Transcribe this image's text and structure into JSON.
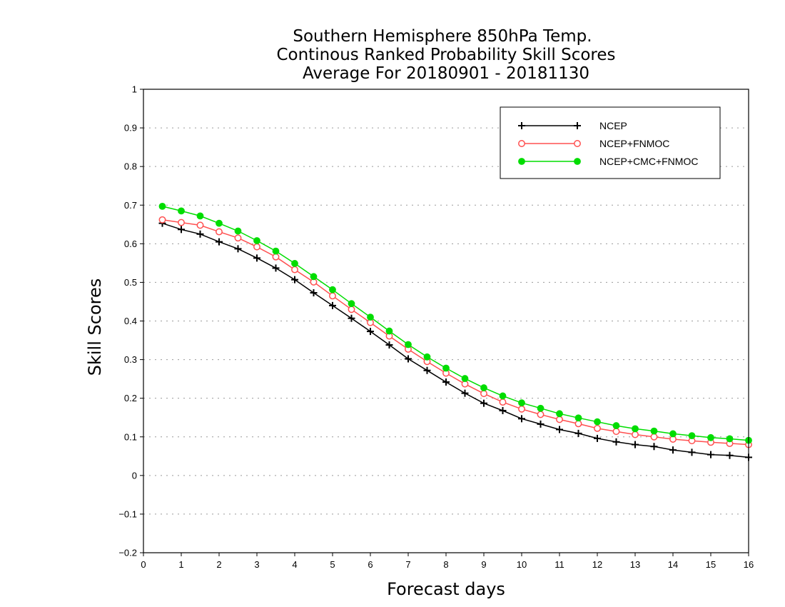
{
  "chart_data": {
    "type": "line",
    "title": "Southern Hemisphere 850hPa Temp.",
    "subtitle": "Continous Ranked Probability Skill Scores",
    "subtitle2": "Average For 20180901 - 20181130",
    "xlabel": "Forecast days",
    "ylabel": "Skill Scores",
    "xlim": [
      0,
      16
    ],
    "ylim": [
      -0.2,
      1
    ],
    "xticks": [
      "0",
      "1",
      "2",
      "3",
      "4",
      "5",
      "6",
      "7",
      "8",
      "9",
      "10",
      "11",
      "12",
      "13",
      "14",
      "15",
      "16"
    ],
    "yticks": [
      "-0.2",
      "-0.1",
      "0",
      "0.1",
      "0.2",
      "0.3",
      "0.4",
      "0.5",
      "0.6",
      "0.7",
      "0.8",
      "0.9",
      "1"
    ],
    "grid": true,
    "legend_position": "top-right",
    "x": [
      0.5,
      1,
      1.5,
      2,
      2.5,
      3,
      3.5,
      4,
      4.5,
      5,
      5.5,
      6,
      6.5,
      7,
      7.5,
      8,
      8.5,
      9,
      9.5,
      10,
      10.5,
      11,
      11.5,
      12,
      12.5,
      13,
      13.5,
      14,
      14.5,
      15,
      15.5,
      16
    ],
    "series": [
      {
        "name": "NCEP",
        "color": "#000000",
        "marker": "plus",
        "values": [
          0.653,
          0.637,
          0.625,
          0.605,
          0.587,
          0.563,
          0.537,
          0.507,
          0.473,
          0.44,
          0.407,
          0.373,
          0.338,
          0.302,
          0.272,
          0.242,
          0.213,
          0.187,
          0.168,
          0.147,
          0.133,
          0.119,
          0.109,
          0.096,
          0.087,
          0.08,
          0.075,
          0.066,
          0.06,
          0.054,
          0.052,
          0.047
        ]
      },
      {
        "name": "NCEP+FNMOC",
        "color": "#ff5050",
        "marker": "open-circle",
        "values": [
          0.662,
          0.655,
          0.648,
          0.631,
          0.615,
          0.592,
          0.566,
          0.533,
          0.501,
          0.465,
          0.43,
          0.396,
          0.361,
          0.327,
          0.295,
          0.265,
          0.237,
          0.212,
          0.19,
          0.172,
          0.158,
          0.145,
          0.134,
          0.122,
          0.114,
          0.106,
          0.1,
          0.094,
          0.09,
          0.086,
          0.083,
          0.08
        ]
      },
      {
        "name": "NCEP+CMC+FNMOC",
        "color": "#00dd00",
        "marker": "filled-circle",
        "values": [
          0.697,
          0.685,
          0.672,
          0.653,
          0.633,
          0.608,
          0.581,
          0.549,
          0.515,
          0.481,
          0.445,
          0.41,
          0.374,
          0.339,
          0.307,
          0.278,
          0.251,
          0.227,
          0.206,
          0.188,
          0.174,
          0.16,
          0.149,
          0.139,
          0.129,
          0.121,
          0.115,
          0.108,
          0.103,
          0.098,
          0.095,
          0.091
        ]
      }
    ]
  }
}
